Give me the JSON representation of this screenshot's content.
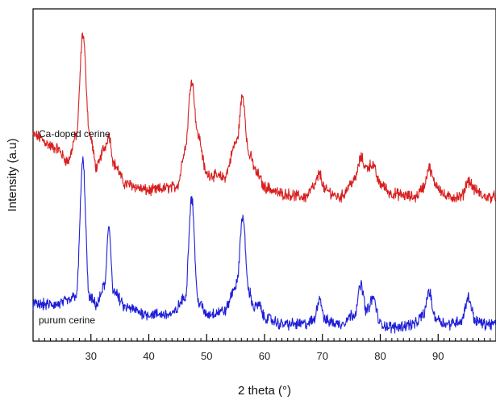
{
  "chart_data": {
    "type": "line",
    "title": "",
    "xlabel": "2 theta (°)",
    "ylabel": "Intensity (a.u)",
    "xlim": [
      20,
      100
    ],
    "xticks": [
      30,
      40,
      50,
      60,
      70,
      80,
      90
    ],
    "yticks_shown": false,
    "grid": false,
    "series": [
      {
        "name": "Ca-doped cerine",
        "color": "#d81e1e",
        "x": [
          20,
          24,
          26,
          27.5,
          28.6,
          29.8,
          31,
          32.3,
          33.1,
          34,
          36,
          40,
          44.5,
          45,
          46.3,
          47.4,
          48.5,
          50,
          53,
          55.2,
          56.2,
          57.3,
          58.8,
          60,
          63,
          67,
          68.5,
          69.5,
          70.5,
          73,
          75.5,
          76.7,
          77.5,
          78.6,
          80,
          82,
          86,
          87.5,
          88.4,
          89.5,
          91.5,
          94,
          95.2,
          96.5,
          98,
          100
        ],
        "y": [
          0.62,
          0.58,
          0.54,
          0.62,
          0.93,
          0.62,
          0.52,
          0.58,
          0.62,
          0.53,
          0.47,
          0.45,
          0.46,
          0.47,
          0.58,
          0.79,
          0.62,
          0.5,
          0.49,
          0.6,
          0.74,
          0.56,
          0.5,
          0.46,
          0.44,
          0.43,
          0.46,
          0.5,
          0.45,
          0.43,
          0.48,
          0.55,
          0.52,
          0.53,
          0.47,
          0.44,
          0.43,
          0.46,
          0.52,
          0.47,
          0.43,
          0.43,
          0.48,
          0.45,
          0.43,
          0.43
        ]
      },
      {
        "name": "purum cerine",
        "color": "#1e1ed8",
        "x": [
          20,
          24,
          26,
          27.5,
          28.6,
          29.7,
          31,
          32.4,
          33.1,
          33.9,
          36,
          40,
          44,
          46.3,
          47.4,
          48.5,
          50,
          53,
          55.2,
          56.2,
          57.3,
          58.2,
          59,
          60,
          63,
          67,
          68.5,
          69.5,
          70.5,
          73,
          75.5,
          76.7,
          77.6,
          78.8,
          80,
          82,
          86,
          87.5,
          88.4,
          89.5,
          91.5,
          94,
          95.2,
          96.5,
          98,
          100
        ],
        "y": [
          0.1,
          0.1,
          0.11,
          0.13,
          0.54,
          0.12,
          0.1,
          0.16,
          0.34,
          0.14,
          0.09,
          0.07,
          0.07,
          0.12,
          0.43,
          0.11,
          0.07,
          0.08,
          0.16,
          0.37,
          0.14,
          0.09,
          0.1,
          0.06,
          0.04,
          0.04,
          0.05,
          0.12,
          0.05,
          0.04,
          0.07,
          0.16,
          0.08,
          0.12,
          0.04,
          0.03,
          0.04,
          0.07,
          0.14,
          0.06,
          0.04,
          0.05,
          0.12,
          0.05,
          0.04,
          0.04
        ]
      }
    ],
    "series_labels_placement": "inside-left, below each trace",
    "frame": "box"
  }
}
